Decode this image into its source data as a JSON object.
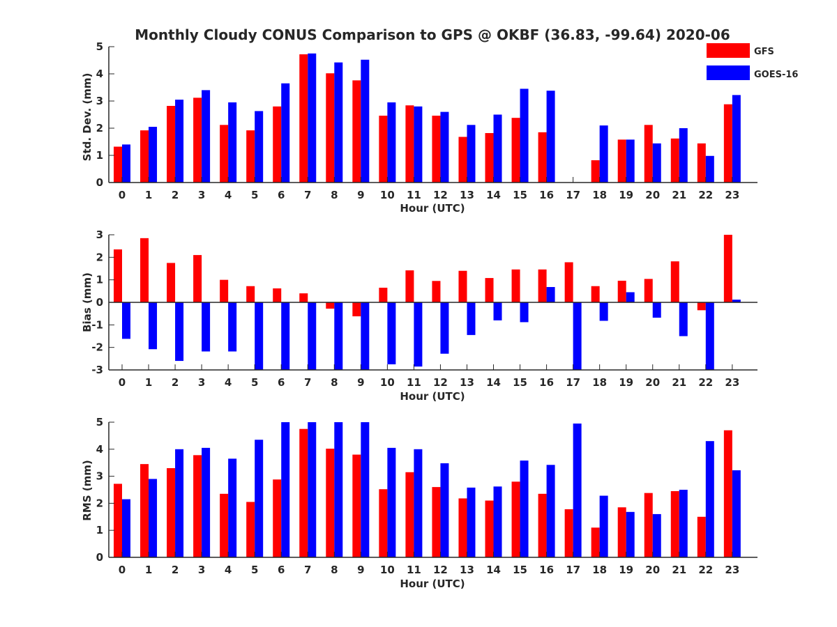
{
  "title": "Monthly Cloudy CONUS Comparison to GPS @ OKBF (36.83, -99.64) 2020-06",
  "legend": [
    {
      "name": "GFS",
      "color": "#ff0000"
    },
    {
      "name": "GOES-16",
      "color": "#0000ff"
    }
  ],
  "chart_data": [
    {
      "type": "bar",
      "xlabel": "Hour (UTC)",
      "ylabel": "Std. Dev. (mm)",
      "ylim": [
        0,
        5
      ],
      "yticks": [
        0,
        1,
        2,
        3,
        4,
        5
      ],
      "categories": [
        "0",
        "1",
        "2",
        "3",
        "4",
        "5",
        "6",
        "7",
        "8",
        "9",
        "10",
        "11",
        "12",
        "13",
        "14",
        "15",
        "16",
        "17",
        "18",
        "19",
        "20",
        "21",
        "22",
        "23"
      ],
      "series": [
        {
          "name": "GFS",
          "color": "#ff0000",
          "values": [
            1.32,
            1.92,
            2.82,
            3.12,
            2.12,
            1.92,
            2.8,
            4.72,
            4.02,
            3.76,
            2.46,
            2.84,
            2.46,
            1.68,
            1.82,
            2.38,
            1.85,
            null,
            0.82,
            1.58,
            2.12,
            1.62,
            1.44,
            2.88
          ]
        },
        {
          "name": "GOES-16",
          "color": "#0000ff",
          "values": [
            1.4,
            2.05,
            3.05,
            3.4,
            2.95,
            2.63,
            3.65,
            4.75,
            4.42,
            4.52,
            2.95,
            2.8,
            2.6,
            2.12,
            2.5,
            3.45,
            3.38,
            null,
            2.1,
            1.58,
            1.44,
            2.0,
            0.98,
            3.22
          ]
        }
      ]
    },
    {
      "type": "bar",
      "xlabel": "Hour (UTC)",
      "ylabel": "Bias (mm)",
      "ylim": [
        -3,
        3
      ],
      "yticks": [
        -3,
        -2,
        -1,
        0,
        1,
        2,
        3
      ],
      "categories": [
        "0",
        "1",
        "2",
        "3",
        "4",
        "5",
        "6",
        "7",
        "8",
        "9",
        "10",
        "11",
        "12",
        "13",
        "14",
        "15",
        "16",
        "17",
        "18",
        "19",
        "20",
        "21",
        "22",
        "23"
      ],
      "series": [
        {
          "name": "GFS",
          "color": "#ff0000",
          "values": [
            2.35,
            2.85,
            1.75,
            2.1,
            1.0,
            0.72,
            0.62,
            0.4,
            -0.28,
            -0.62,
            0.65,
            1.42,
            0.95,
            1.4,
            1.08,
            1.46,
            1.46,
            1.78,
            0.72,
            0.96,
            1.04,
            1.82,
            -0.35,
            3.0
          ]
        },
        {
          "name": "GOES-16",
          "color": "#0000ff",
          "values": [
            -1.62,
            -2.08,
            -2.6,
            -2.18,
            -2.18,
            -3.0,
            -3.0,
            -3.0,
            -3.0,
            -3.0,
            -2.75,
            -2.85,
            -2.28,
            -1.45,
            -0.8,
            -0.88,
            0.68,
            -3.0,
            -0.82,
            0.45,
            -0.68,
            -1.5,
            -3.0,
            0.12
          ]
        }
      ]
    },
    {
      "type": "bar",
      "xlabel": "Hour (UTC)",
      "ylabel": "RMS (mm)",
      "ylim": [
        0,
        5
      ],
      "yticks": [
        0,
        1,
        2,
        3,
        4,
        5
      ],
      "categories": [
        "0",
        "1",
        "2",
        "3",
        "4",
        "5",
        "6",
        "7",
        "8",
        "9",
        "10",
        "11",
        "12",
        "13",
        "14",
        "15",
        "16",
        "17",
        "18",
        "19",
        "20",
        "21",
        "22",
        "23"
      ],
      "series": [
        {
          "name": "GFS",
          "color": "#ff0000",
          "values": [
            2.72,
            3.45,
            3.3,
            3.78,
            2.35,
            2.05,
            2.88,
            4.75,
            4.02,
            3.8,
            2.52,
            3.15,
            2.6,
            2.18,
            2.1,
            2.8,
            2.35,
            1.78,
            1.1,
            1.85,
            2.38,
            2.45,
            1.5,
            4.7
          ]
        },
        {
          "name": "GOES-16",
          "color": "#0000ff",
          "values": [
            2.15,
            2.9,
            4.0,
            4.05,
            3.65,
            4.35,
            5.0,
            5.0,
            5.0,
            5.0,
            4.05,
            4.0,
            3.48,
            2.58,
            2.62,
            3.58,
            3.42,
            4.95,
            2.28,
            1.68,
            1.6,
            2.5,
            4.3,
            3.22
          ]
        }
      ]
    }
  ]
}
